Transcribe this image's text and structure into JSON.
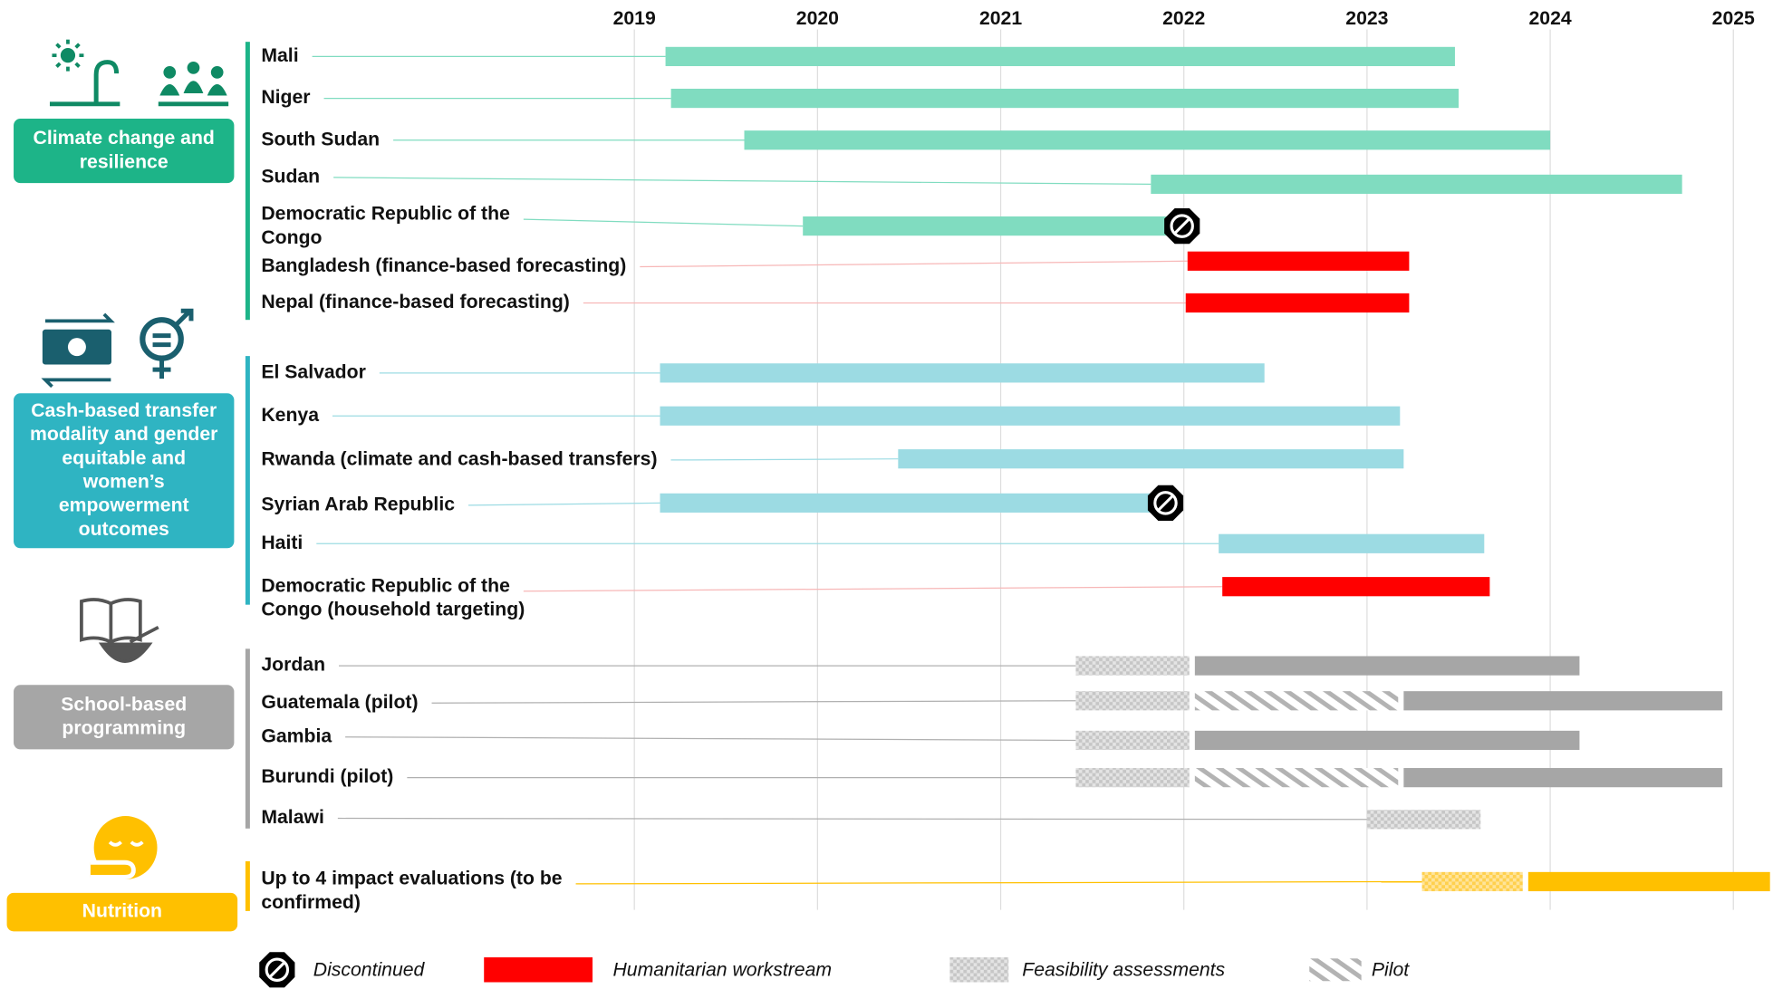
{
  "chart_data": {
    "type": "gantt",
    "xlim": [
      2019,
      2025.2
    ],
    "xticks": [
      2019,
      2020,
      2021,
      2022,
      2023,
      2024,
      2025
    ],
    "grid": true,
    "groups": [
      {
        "name": [
          "Climate change and",
          "resilience"
        ],
        "color": "#1db488",
        "bar_color": "#80dcc0",
        "rows": [
          {
            "label": [
              "Mali"
            ],
            "segments": [
              {
                "kind": "main",
                "start": 2019.17,
                "end": 2023.48
              }
            ]
          },
          {
            "label": [
              "Niger"
            ],
            "segments": [
              {
                "kind": "main",
                "start": 2019.2,
                "end": 2023.5
              }
            ]
          },
          {
            "label": [
              "South Sudan"
            ],
            "segments": [
              {
                "kind": "main",
                "start": 2019.6,
                "end": 2024.0
              }
            ]
          },
          {
            "label": [
              "Sudan"
            ],
            "segments": [
              {
                "kind": "main",
                "start": 2021.82,
                "end": 2024.72
              }
            ]
          },
          {
            "label": [
              "Democratic Republic of the",
              "Congo"
            ],
            "segments": [
              {
                "kind": "main",
                "start": 2019.92,
                "end": 2021.99
              }
            ],
            "discontinued": true
          },
          {
            "label": [
              "Bangladesh (finance-based forecasting)"
            ],
            "segments": [
              {
                "kind": "humanitarian",
                "start": 2022.02,
                "end": 2023.23
              }
            ]
          },
          {
            "label": [
              "Nepal (finance-based forecasting)"
            ],
            "segments": [
              {
                "kind": "humanitarian",
                "start": 2022.01,
                "end": 2023.23
              }
            ]
          }
        ]
      },
      {
        "name": [
          "Cash-based transfer",
          "modality and gender",
          "equitable and",
          "women’s",
          "empowerment",
          "outcomes"
        ],
        "color": "#2fb4c2",
        "bar_color": "#9cdbe3",
        "rows": [
          {
            "label": [
              "El Salvador"
            ],
            "segments": [
              {
                "kind": "main",
                "start": 2019.14,
                "end": 2022.44
              }
            ]
          },
          {
            "label": [
              "Kenya"
            ],
            "segments": [
              {
                "kind": "main",
                "start": 2019.14,
                "end": 2023.18
              }
            ]
          },
          {
            "label": [
              "Rwanda (climate and cash-based transfers)"
            ],
            "segments": [
              {
                "kind": "main",
                "start": 2020.44,
                "end": 2023.2
              }
            ]
          },
          {
            "label": [
              "Syrian Arab Republic"
            ],
            "segments": [
              {
                "kind": "main",
                "start": 2019.14,
                "end": 2021.9
              }
            ],
            "discontinued": true
          },
          {
            "label": [
              "Haiti"
            ],
            "segments": [
              {
                "kind": "main",
                "start": 2022.19,
                "end": 2023.64
              }
            ]
          },
          {
            "label": [
              "Democratic Republic of the",
              "Congo (household targeting)"
            ],
            "segments": [
              {
                "kind": "humanitarian",
                "start": 2022.21,
                "end": 2023.67
              }
            ]
          }
        ]
      },
      {
        "name": [
          "School-based",
          "programming"
        ],
        "color": "#a6a6a6",
        "bar_color": "#a6a6a6",
        "rows": [
          {
            "label": [
              "Jordan"
            ],
            "segments": [
              {
                "kind": "feasibility",
                "start": 2021.41,
                "end": 2022.03
              },
              {
                "kind": "main",
                "start": 2022.06,
                "end": 2024.16
              }
            ]
          },
          {
            "label": [
              "Guatemala (pilot)"
            ],
            "segments": [
              {
                "kind": "feasibility",
                "start": 2021.41,
                "end": 2022.03
              },
              {
                "kind": "pilot",
                "start": 2022.06,
                "end": 2023.17
              },
              {
                "kind": "main",
                "start": 2023.2,
                "end": 2024.94
              }
            ]
          },
          {
            "label": [
              "Gambia"
            ],
            "segments": [
              {
                "kind": "feasibility",
                "start": 2021.41,
                "end": 2022.03
              },
              {
                "kind": "main",
                "start": 2022.06,
                "end": 2024.16
              }
            ]
          },
          {
            "label": [
              "Burundi (pilot)"
            ],
            "segments": [
              {
                "kind": "feasibility",
                "start": 2021.41,
                "end": 2022.03
              },
              {
                "kind": "pilot",
                "start": 2022.06,
                "end": 2023.17
              },
              {
                "kind": "main",
                "start": 2023.2,
                "end": 2024.94
              }
            ]
          },
          {
            "label": [
              "Malawi"
            ],
            "segments": [
              {
                "kind": "feasibility",
                "start": 2023.0,
                "end": 2023.62
              }
            ]
          }
        ]
      },
      {
        "name": [
          "Nutrition"
        ],
        "color": "#ffc000",
        "bar_color": "#ffc000",
        "rows": [
          {
            "label": [
              "Up to 4 impact evaluations (to be",
              "confirmed)"
            ],
            "segments": [
              {
                "kind": "feasibility",
                "start": 2023.3,
                "end": 2023.85
              },
              {
                "kind": "main",
                "start": 2023.88,
                "end": 2025.2
              }
            ]
          }
        ]
      }
    ],
    "legend": [
      {
        "kind": "discontinued",
        "label": "Discontinued"
      },
      {
        "kind": "humanitarian",
        "label": "Humanitarian workstream",
        "color": "#ff0000"
      },
      {
        "kind": "feasibility",
        "label": "Feasibility assessments"
      },
      {
        "kind": "pilot",
        "label": "Pilot"
      }
    ]
  }
}
